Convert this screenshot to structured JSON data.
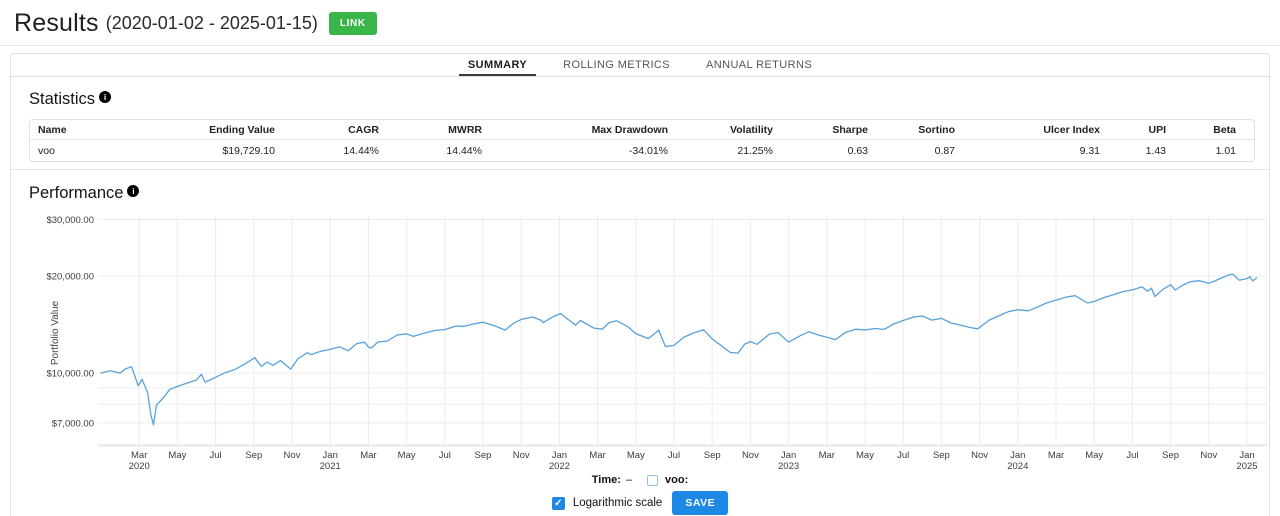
{
  "header": {
    "title": "Results",
    "date_range": "(2020-01-02 - 2025-01-15)",
    "link_button": "LINK"
  },
  "tabs": [
    {
      "label": "SUMMARY",
      "active": true
    },
    {
      "label": "ROLLING METRICS",
      "active": false
    },
    {
      "label": "ANNUAL RETURNS",
      "active": false
    }
  ],
  "statistics": {
    "heading": "Statistics",
    "info_icon": "i",
    "columns": [
      "Name",
      "Ending Value",
      "CAGR",
      "MWRR",
      "Max Drawdown",
      "Volatility",
      "Sharpe",
      "Sortino",
      "Ulcer Index",
      "UPI",
      "Beta"
    ],
    "rows": [
      [
        "voo",
        "$19,729.10",
        "14.44%",
        "14.44%",
        "-34.01%",
        "21.25%",
        "0.63",
        "0.87",
        "9.31",
        "1.43",
        "1.01"
      ]
    ]
  },
  "performance": {
    "heading": "Performance",
    "info_icon": "i"
  },
  "chart_data": {
    "type": "line",
    "title": "",
    "xlabel": "",
    "ylabel": "Portfolio Value",
    "yscale": "log",
    "ylim": [
      5930,
      30740
    ],
    "x_range": [
      "2020-01-02",
      "2025-01-15"
    ],
    "grid": true,
    "y_ticks": [
      {
        "value": 30000,
        "label": "$30,000.00"
      },
      {
        "value": 20000,
        "label": "$20,000.00"
      },
      {
        "value": 10000,
        "label": "$10,000.00"
      },
      {
        "value": 7000,
        "label": "$7,000.00"
      }
    ],
    "y_gridlines": [
      30000,
      20000,
      10000,
      9000,
      8000,
      7000,
      6000
    ],
    "x_ticks": [
      {
        "m": 2,
        "label": "Mar",
        "year": "2020"
      },
      {
        "m": 4,
        "label": "May"
      },
      {
        "m": 6,
        "label": "Jul"
      },
      {
        "m": 8,
        "label": "Sep"
      },
      {
        "m": 10,
        "label": "Nov"
      },
      {
        "m": 12,
        "label": "Jan",
        "year": "2021"
      },
      {
        "m": 14,
        "label": "Mar"
      },
      {
        "m": 16,
        "label": "May"
      },
      {
        "m": 18,
        "label": "Jul"
      },
      {
        "m": 20,
        "label": "Sep"
      },
      {
        "m": 22,
        "label": "Nov"
      },
      {
        "m": 24,
        "label": "Jan",
        "year": "2022"
      },
      {
        "m": 26,
        "label": "Mar"
      },
      {
        "m": 28,
        "label": "May"
      },
      {
        "m": 30,
        "label": "Jul"
      },
      {
        "m": 32,
        "label": "Sep"
      },
      {
        "m": 34,
        "label": "Nov"
      },
      {
        "m": 36,
        "label": "Jan",
        "year": "2023"
      },
      {
        "m": 38,
        "label": "Mar"
      },
      {
        "m": 40,
        "label": "May"
      },
      {
        "m": 42,
        "label": "Jul"
      },
      {
        "m": 44,
        "label": "Sep"
      },
      {
        "m": 46,
        "label": "Nov"
      },
      {
        "m": 48,
        "label": "Jan",
        "year": "2024"
      },
      {
        "m": 50,
        "label": "Mar"
      },
      {
        "m": 52,
        "label": "May"
      },
      {
        "m": 54,
        "label": "Jul"
      },
      {
        "m": 56,
        "label": "Sep"
      },
      {
        "m": 58,
        "label": "Nov"
      },
      {
        "m": 60,
        "label": "Jan",
        "year": "2025"
      }
    ],
    "series": [
      {
        "name": "voo",
        "color": "#58a1dc",
        "x_unit": "months since 2020-01-01",
        "points": [
          [
            0,
            10000
          ],
          [
            0.5,
            10160
          ],
          [
            1,
            9990
          ],
          [
            1.3,
            10310
          ],
          [
            1.6,
            10450
          ],
          [
            1.95,
            9130
          ],
          [
            2.15,
            9560
          ],
          [
            2.45,
            8650
          ],
          [
            2.6,
            7450
          ],
          [
            2.75,
            6900
          ],
          [
            2.9,
            7950
          ],
          [
            3.0,
            8060
          ],
          [
            3.3,
            8420
          ],
          [
            3.6,
            8900
          ],
          [
            4.0,
            9080
          ],
          [
            4.5,
            9300
          ],
          [
            5.0,
            9510
          ],
          [
            5.25,
            9910
          ],
          [
            5.45,
            9370
          ],
          [
            6.0,
            9700
          ],
          [
            6.5,
            10030
          ],
          [
            7.0,
            10245
          ],
          [
            7.5,
            10640
          ],
          [
            8.05,
            11160
          ],
          [
            8.4,
            10480
          ],
          [
            8.7,
            10820
          ],
          [
            9.0,
            10560
          ],
          [
            9.4,
            10930
          ],
          [
            9.93,
            10280
          ],
          [
            10.3,
            11050
          ],
          [
            10.8,
            11560
          ],
          [
            11.0,
            11400
          ],
          [
            11.5,
            11680
          ],
          [
            12.0,
            11840
          ],
          [
            12.5,
            12050
          ],
          [
            12.95,
            11720
          ],
          [
            13.4,
            12350
          ],
          [
            13.8,
            12460
          ],
          [
            14.0,
            12040
          ],
          [
            14.15,
            11950
          ],
          [
            14.5,
            12480
          ],
          [
            15.0,
            12570
          ],
          [
            15.5,
            13120
          ],
          [
            16.0,
            13240
          ],
          [
            16.35,
            12990
          ],
          [
            17.0,
            13330
          ],
          [
            17.5,
            13560
          ],
          [
            18.0,
            13640
          ],
          [
            18.6,
            13990
          ],
          [
            19.0,
            13960
          ],
          [
            19.5,
            14200
          ],
          [
            20.0,
            14380
          ],
          [
            20.6,
            14020
          ],
          [
            21.0,
            13710
          ],
          [
            21.15,
            13580
          ],
          [
            21.6,
            14280
          ],
          [
            22.0,
            14670
          ],
          [
            22.6,
            14930
          ],
          [
            23.05,
            14570
          ],
          [
            23.15,
            14330
          ],
          [
            23.6,
            14880
          ],
          [
            24.05,
            15300
          ],
          [
            24.85,
            14080
          ],
          [
            25.1,
            14560
          ],
          [
            25.8,
            13790
          ],
          [
            26.25,
            13680
          ],
          [
            26.6,
            14350
          ],
          [
            27.0,
            14520
          ],
          [
            27.6,
            13900
          ],
          [
            28.0,
            13250
          ],
          [
            28.65,
            12790
          ],
          [
            29.0,
            13270
          ],
          [
            29.2,
            13600
          ],
          [
            29.55,
            12080
          ],
          [
            30.0,
            12180
          ],
          [
            30.5,
            12900
          ],
          [
            31.0,
            13300
          ],
          [
            31.55,
            13620
          ],
          [
            32.0,
            12760
          ],
          [
            32.95,
            11580
          ],
          [
            33.35,
            11530
          ],
          [
            33.7,
            12300
          ],
          [
            34.0,
            12520
          ],
          [
            34.35,
            12280
          ],
          [
            35.0,
            13220
          ],
          [
            35.45,
            13350
          ],
          [
            36.0,
            12460
          ],
          [
            36.6,
            13050
          ],
          [
            37.05,
            13430
          ],
          [
            37.6,
            13100
          ],
          [
            38.0,
            12920
          ],
          [
            38.45,
            12700
          ],
          [
            39.0,
            13390
          ],
          [
            39.5,
            13680
          ],
          [
            40.0,
            13600
          ],
          [
            40.5,
            13750
          ],
          [
            41.0,
            13660
          ],
          [
            41.5,
            14200
          ],
          [
            42.0,
            14560
          ],
          [
            42.5,
            14900
          ],
          [
            43.0,
            15030
          ],
          [
            43.5,
            14600
          ],
          [
            44.0,
            14790
          ],
          [
            44.5,
            14300
          ],
          [
            45.0,
            14080
          ],
          [
            45.5,
            13850
          ],
          [
            45.9,
            13720
          ],
          [
            46.5,
            14600
          ],
          [
            47.0,
            15040
          ],
          [
            47.5,
            15500
          ],
          [
            48.0,
            15720
          ],
          [
            48.55,
            15600
          ],
          [
            49.0,
            15990
          ],
          [
            49.5,
            16500
          ],
          [
            50.0,
            16840
          ],
          [
            50.5,
            17200
          ],
          [
            51.0,
            17380
          ],
          [
            51.65,
            16500
          ],
          [
            52.0,
            16670
          ],
          [
            52.5,
            17150
          ],
          [
            53.0,
            17500
          ],
          [
            53.5,
            17900
          ],
          [
            54.0,
            18120
          ],
          [
            54.5,
            18510
          ],
          [
            54.8,
            17950
          ],
          [
            55.0,
            18340
          ],
          [
            55.18,
            17280
          ],
          [
            55.6,
            18200
          ],
          [
            56.0,
            18790
          ],
          [
            56.25,
            18100
          ],
          [
            56.6,
            18700
          ],
          [
            57.0,
            19180
          ],
          [
            57.5,
            19350
          ],
          [
            58.0,
            19010
          ],
          [
            58.3,
            19300
          ],
          [
            59.0,
            20130
          ],
          [
            59.25,
            20280
          ],
          [
            59.6,
            19420
          ],
          [
            60.0,
            19650
          ],
          [
            60.15,
            19900
          ],
          [
            60.3,
            19320
          ],
          [
            60.5,
            19729
          ]
        ]
      }
    ],
    "legend": "none"
  },
  "controls": {
    "time_label": "Time:",
    "time_value": "–",
    "voo_label": "voo:",
    "voo_checked": false,
    "log_label": "Logarithmic scale",
    "log_checked": true,
    "save_button": "SAVE"
  }
}
